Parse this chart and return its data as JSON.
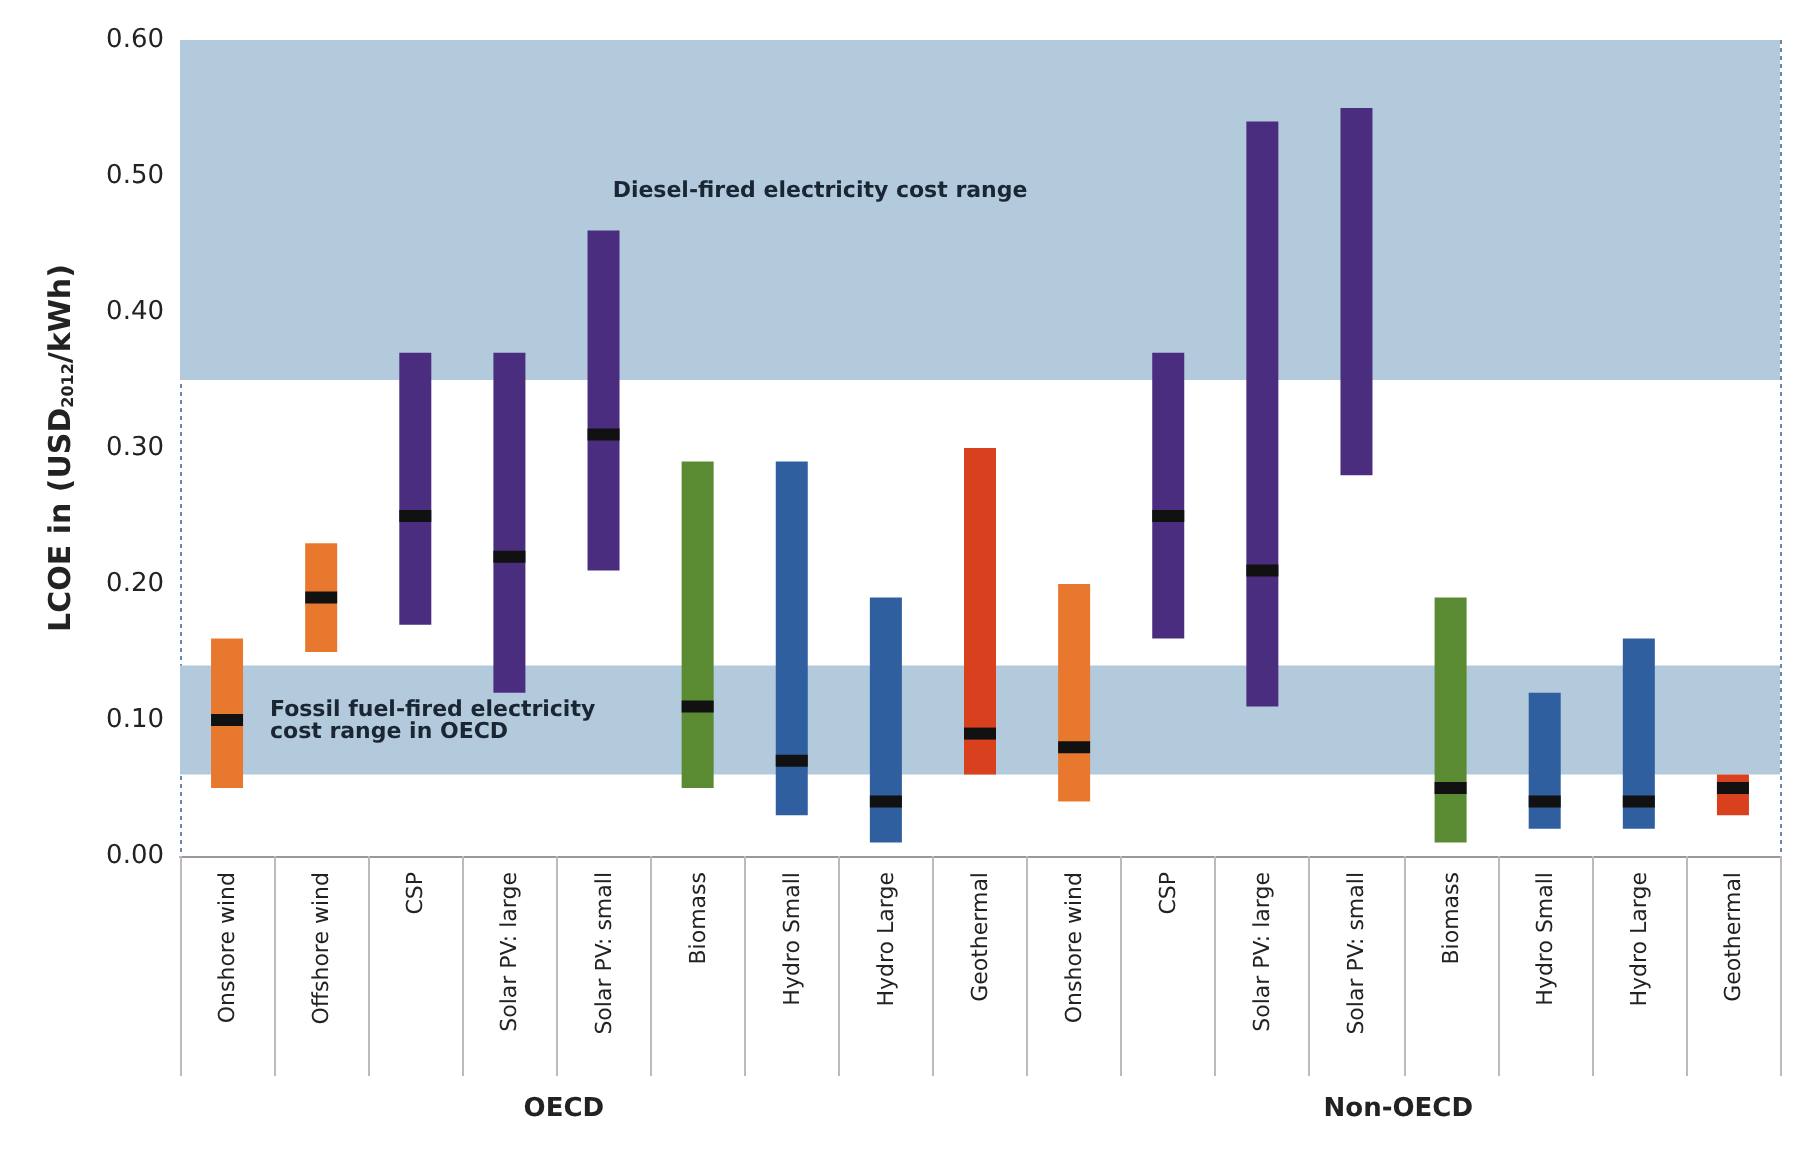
{
  "chart_data": {
    "type": "box",
    "ylabel": "LCOE in (USD$_{2012}$/kWh)",
    "categories": [
      "Onshore wind",
      "Offshore wind",
      "CSP",
      "Solar PV: large",
      "Solar PV: small",
      "Biomass",
      "Hydro Small",
      "Hydro Large",
      "Geothermal",
      "Onshore wind",
      "CSP",
      "Solar PV: large",
      "Solar PV: small",
      "Biomass",
      "Hydro Small",
      "Hydro Large",
      "Geothermal"
    ],
    "series": [
      {
        "colors": [
          "#e8782e",
          "#e8782e",
          "#4b2d7f",
          "#4b2d7f",
          "#4b2d7f",
          "#5a8a32",
          "#2f5f9f",
          "#2f5f9f",
          "#d9401e",
          "#e8782e",
          "#4b2d7f",
          "#4b2d7f",
          "#4b2d7f",
          "#5a8a32",
          "#2f5f9f",
          "#2f5f9f",
          "#d9401e"
        ],
        "boxes": [
          {
            "low": 0.05,
            "q1": 0.05,
            "median": 0.1,
            "q3": 0.16,
            "high": 0.16
          },
          {
            "low": 0.15,
            "q1": 0.15,
            "median": 0.19,
            "q3": 0.23,
            "high": 0.23
          },
          {
            "low": 0.17,
            "q1": 0.17,
            "median": 0.25,
            "q3": 0.37,
            "high": 0.37
          },
          {
            "low": 0.12,
            "q1": 0.12,
            "median": 0.22,
            "q3": 0.37,
            "high": 0.37
          },
          {
            "low": 0.21,
            "q1": 0.21,
            "median": 0.31,
            "q3": 0.46,
            "high": 0.46
          },
          {
            "low": 0.05,
            "q1": 0.05,
            "median": 0.11,
            "q3": 0.29,
            "high": 0.29
          },
          {
            "low": 0.03,
            "q1": 0.03,
            "median": 0.07,
            "q3": 0.29,
            "high": 0.29
          },
          {
            "low": 0.01,
            "q1": 0.01,
            "median": 0.04,
            "q3": 0.19,
            "high": 0.19
          },
          {
            "low": 0.06,
            "q1": 0.06,
            "median": 0.09,
            "q3": 0.3,
            "high": 0.3
          },
          {
            "low": 0.04,
            "q1": 0.04,
            "median": 0.08,
            "q3": 0.2,
            "high": 0.2
          },
          {
            "low": 0.16,
            "q1": 0.16,
            "median": 0.25,
            "q3": 0.37,
            "high": 0.37
          },
          {
            "low": 0.11,
            "q1": 0.11,
            "median": 0.21,
            "q3": 0.54,
            "high": 0.54
          },
          {
            "low": 0.28,
            "q1": 0.28,
            "q3": 0.55,
            "high": 0.55
          },
          {
            "low": 0.01,
            "q1": 0.01,
            "median": 0.05,
            "q3": 0.19,
            "high": 0.19
          },
          {
            "low": 0.02,
            "q1": 0.02,
            "median": 0.04,
            "q3": 0.12,
            "high": 0.12
          },
          {
            "low": 0.02,
            "q1": 0.02,
            "median": 0.04,
            "q3": 0.16,
            "high": 0.16
          },
          {
            "low": 0.03,
            "q1": 0.03,
            "median": 0.05,
            "q3": 0.06,
            "high": 0.06
          }
        ]
      }
    ],
    "ylim": [
      0,
      0.6
    ],
    "yticks": [
      {
        "value": 0,
        "label": "0.00"
      },
      {
        "value": 0.1,
        "label": "0.10"
      },
      {
        "value": 0.2,
        "label": "0.20"
      },
      {
        "value": 0.3,
        "label": "0.30"
      },
      {
        "value": 0.4,
        "label": "0.40"
      },
      {
        "value": 0.5,
        "label": "0.50"
      },
      {
        "value": 0.6,
        "label": "0.60"
      }
    ],
    "bands": [
      {
        "axis": "y",
        "from": 0.35,
        "to": 0.6,
        "label": "Diesel-fired electricity cost range",
        "color": "#b3c9dc"
      },
      {
        "axis": "y",
        "from": 0.06,
        "to": 0.14,
        "label": "Fossil fuel-fired electricity cost range in OECD",
        "color": "#b3c9dc"
      }
    ],
    "annotations": [
      "OECD",
      "Non-OECD"
    ]
  }
}
